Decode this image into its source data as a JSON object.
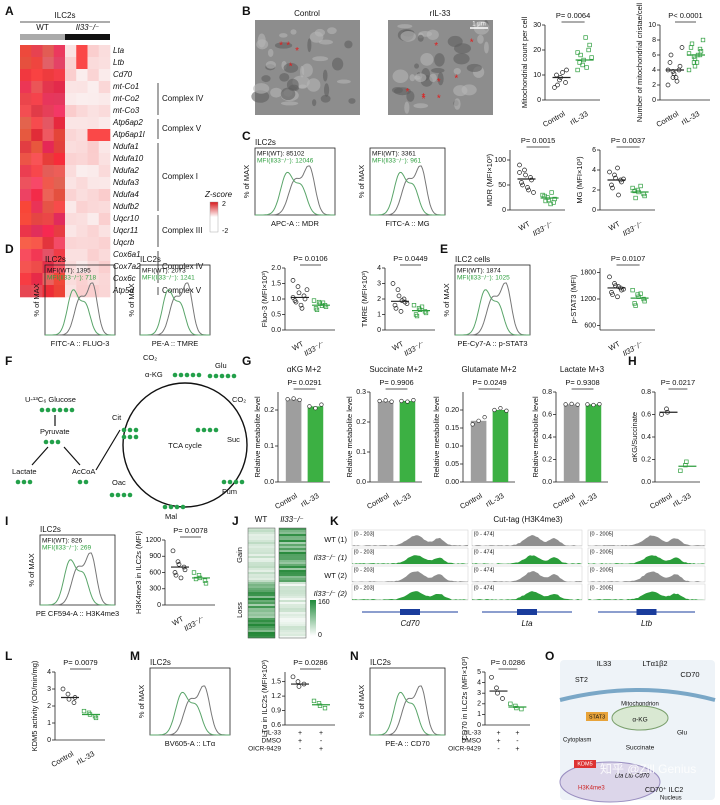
{
  "panel_labels": [
    "A",
    "B",
    "C",
    "D",
    "E",
    "F",
    "G",
    "H",
    "I",
    "J",
    "K",
    "L",
    "M",
    "N",
    "O"
  ],
  "heatmap_a": {
    "title": "ILC2s",
    "groups": [
      "WT",
      "Il33⁻/⁻"
    ],
    "genes": [
      "Lta",
      "Ltb",
      "Cd70",
      "mt-Co1",
      "mt-Co2",
      "mt-Co3",
      "Atp6ap2",
      "Atp6ap1l",
      "Ndufa1",
      "Ndufa10",
      "Ndufa2",
      "Ndufa3",
      "Ndufa4",
      "Ndufb2",
      "Uqcr10",
      "Uqcr11",
      "Uqcrb",
      "Cox6a1",
      "Cox7a2",
      "Cox6c",
      "Atp5d"
    ],
    "complexes": [
      "Complex IV",
      "Complex V",
      "Complex I",
      "Complex III",
      "Complex IV",
      "Complex V"
    ],
    "legend_title": "Z-score",
    "legend_max": 2,
    "legend_min": -2
  },
  "em_b": {
    "labels": [
      "Control",
      "rIL-33"
    ],
    "scale": "1 μm"
  },
  "flows": [
    {
      "title": "ILC2s",
      "mfi_wt": "MFI(WT): 85102",
      "mfi_ko": "MFI(Il33⁻/⁻): 12046",
      "ylabel": "% of MAX",
      "xlabel": "APC-A :: MDR"
    },
    {
      "mfi_wt": "MFI(WT): 3361",
      "mfi_ko": "MFI(Il33⁻/⁻): 961",
      "ylabel": "% of MAX",
      "xlabel": "FITC-A :: MG"
    },
    {
      "title": "ILC2s",
      "mfi_wt": "MFI(WT): 1395",
      "mfi_ko": "MFI(Il33⁻/⁻): 718",
      "ylabel": "% of MAX",
      "xlabel": "FITC-A :: FLUO-3"
    },
    {
      "title": "ILC2s",
      "mfi_wt": "MFI(WT): 2073",
      "mfi_ko": "MFI(Il33⁻/⁻): 1241",
      "ylabel": "% of MAX",
      "xlabel": "PE-A :: TMRE"
    },
    {
      "title": "ILC2 cells",
      "mfi_wt": "MFI(WT): 1874",
      "mfi_ko": "MFI(Il33⁻/⁻): 1025",
      "ylabel": "% of MAX",
      "xlabel": "PE-Cy7-A :: p-STAT3"
    },
    {
      "title": "ILC2s",
      "mfi_wt": "MFI(WT): 826",
      "mfi_ko": "MFI(Il33⁻/⁻): 269",
      "ylabel": "% of MAX",
      "xlabel": "PE CF594-A :: H3K4me3"
    },
    {
      "title": "ILC2s",
      "ylabel": "% of MAX",
      "xlabel": "BV605-A :: LTα"
    },
    {
      "title": "ILC2s",
      "ylabel": "% of MAX",
      "xlabel": "PE-A :: CD70"
    }
  ],
  "tca_f": {
    "glucose": "U-¹³C₆ Glucose",
    "pyruvate": "Pyruvate",
    "lactate": "Lactate",
    "accoa": "AcCoA",
    "cit": "Cit",
    "akg": "α-KG",
    "co2_1": "CO₂",
    "glu": "Glu",
    "co2_2": "CO₂",
    "suc": "Suc",
    "cycle": "TCA cycle",
    "fum": "Fum",
    "mal": "Mal",
    "oac": "Oac"
  },
  "heatmap_j": {
    "groups": [
      "WT",
      "Il33⁻/⁻"
    ],
    "gain": "Gain",
    "loss": "Loss",
    "legend_max": 160,
    "legend_min": 0
  },
  "tracks_k": {
    "title": "Cut-tag (H3K4me3)",
    "rows": [
      "WT (1)",
      "Il33⁻/⁻ (1)",
      "WT (2)",
      "Il33⁻/⁻ (2)"
    ],
    "ranges": [
      "[0 - 203]",
      "[0 - 474]",
      "[0 - 2005]"
    ],
    "genes": [
      "Cd70",
      "Lta",
      "Ltb"
    ]
  },
  "model_o": {
    "il33": "IL33",
    "lt": "LTα1β2",
    "cd70": "CD70",
    "st2": "ST2",
    "mito": "Mitochondrion",
    "akg": "α-KG",
    "glu": "Glu",
    "stat3": "STAT3",
    "cytoplasm": "Cytoplasm",
    "succinate": "Succinate",
    "kdm5": "KDM5",
    "genes": "Lta Ltb Cd70",
    "h3k4": "H3K4me3",
    "nucleus": "Nucleus",
    "cell": "CD70⁺ ILC2"
  },
  "watermark": "知乎 @Zill Genius",
  "chart_data": [
    {
      "type": "dot",
      "ylabel": "Mitochondrial count per cell",
      "p_label": "P= 0.0064",
      "categories": [
        "Control",
        "rIL-33"
      ],
      "colors": [
        "#222222",
        "#2e9e3e"
      ],
      "values": [
        [
          5,
          8,
          9,
          7,
          12,
          10,
          6,
          11
        ],
        [
          12,
          14,
          16,
          20,
          22,
          15,
          18,
          25,
          13,
          17,
          19
        ]
      ],
      "means": [
        9,
        16
      ],
      "ylim": [
        0,
        30
      ],
      "yticks": [
        0,
        10,
        20,
        30
      ]
    },
    {
      "type": "dot",
      "ylabel": "Number of mitochondrial cristae/cell",
      "p_label": "P< 0.0001",
      "categories": [
        "Control",
        "rIL-33"
      ],
      "colors": [
        "#222222",
        "#2e9e3e"
      ],
      "values": [
        [
          2,
          3,
          3.5,
          4,
          4.5,
          5,
          6,
          3,
          2.5,
          7,
          4,
          3.8
        ],
        [
          4,
          5,
          5.5,
          6,
          6.5,
          7,
          7.5,
          5,
          6,
          8,
          6.2,
          5.8,
          4.5,
          6.8
        ]
      ],
      "means": [
        4,
        6
      ],
      "ylim": [
        0,
        10
      ],
      "yticks": [
        0,
        2,
        4,
        6,
        8,
        10
      ]
    },
    {
      "type": "dot",
      "ylabel": "MDR (MFI×10³)",
      "p_label": "P= 0.0015",
      "categories": [
        "WT",
        "Il33⁻/⁻"
      ],
      "colors": [
        "#222222",
        "#2e9e3e"
      ],
      "values": [
        [
          90,
          80,
          70,
          65,
          60,
          55,
          50,
          45,
          40,
          35,
          75
        ],
        [
          30,
          25,
          20,
          15,
          22,
          28,
          18,
          12,
          35
        ]
      ],
      "means": [
        62,
        24
      ],
      "ylim": [
        0,
        120
      ],
      "yticks": [
        0,
        50,
        100
      ]
    },
    {
      "type": "dot",
      "ylabel": "MG (MFI×10³)",
      "p_label": "P= 0.0037",
      "categories": [
        "WT",
        "Il33⁻/⁻"
      ],
      "colors": [
        "#222222",
        "#2e9e3e"
      ],
      "values": [
        [
          3.8,
          3.5,
          3.2,
          3,
          2.8,
          2.5,
          2.2,
          4.2,
          1.5,
          3.1
        ],
        [
          2.2,
          2,
          1.8,
          1.6,
          1.4,
          1.9,
          1.2,
          2.4
        ]
      ],
      "means": [
        3,
        1.8
      ],
      "ylim": [
        0,
        6
      ],
      "yticks": [
        0,
        2,
        4,
        6
      ]
    },
    {
      "type": "dot",
      "ylabel": "Fluo-3 (MFI×10³)",
      "p_label": "P= 0.0106",
      "categories": [
        "WT",
        "Il33⁻/⁻"
      ],
      "colors": [
        "#222222",
        "#2e9e3e"
      ],
      "values": [
        [
          1.6,
          1.4,
          1.2,
          1.1,
          1,
          0.95,
          0.9,
          0.8,
          0.7,
          1.3,
          1.05
        ],
        [
          0.95,
          0.9,
          0.85,
          0.8,
          0.75,
          0.7,
          0.65,
          0.78,
          0.88
        ]
      ],
      "means": [
        1.05,
        0.8
      ],
      "ylim": [
        0,
        2
      ],
      "yticks": [
        {
          "value": 0,
          "label": "0.0"
        },
        0.5,
        {
          "value": 1,
          "label": "1.0"
        },
        1.5,
        {
          "value": 2,
          "label": "2.0"
        }
      ]
    },
    {
      "type": "dot",
      "ylabel": "TMRE (MFI×10³)",
      "p_label": "P= 0.0449",
      "categories": [
        "WT",
        "Il33⁻/⁻"
      ],
      "colors": [
        "#222222",
        "#2e9e3e"
      ],
      "values": [
        [
          3,
          2.6,
          2.2,
          2,
          1.8,
          1.6,
          1.4,
          1.2,
          1.9,
          1.7
        ],
        [
          1.6,
          1.4,
          1.3,
          1.2,
          1.1,
          1,
          0.9,
          1.5
        ]
      ],
      "means": [
        1.85,
        1.25
      ],
      "ylim": [
        0,
        4
      ],
      "yticks": [
        0,
        1,
        2,
        3,
        4
      ]
    },
    {
      "type": "dot",
      "ylabel": "p-STAT3 (MFI)",
      "p_label": "P= 0.0107",
      "categories": [
        "WT",
        "Il33⁻/⁻"
      ],
      "colors": [
        "#222222",
        "#2e9e3e"
      ],
      "values": [
        [
          1700,
          1550,
          1500,
          1450,
          1400,
          1350,
          1300,
          1250,
          1480,
          1420
        ],
        [
          1400,
          1300,
          1250,
          1200,
          1150,
          1100,
          1050,
          1320
        ]
      ],
      "means": [
        1450,
        1220
      ],
      "ylim": [
        500,
        1900
      ],
      "yticks": [
        600,
        1200,
        1800
      ]
    },
    {
      "type": "bar",
      "title": "αKG M+2",
      "ylabel": "Relative metabolite level",
      "p_label": "P= 0.0291",
      "categories": [
        "Control",
        "rIL-33"
      ],
      "colors": [
        "#9e9e9e",
        "#3cb043"
      ],
      "values": [
        0.23,
        0.21
      ],
      "points": [
        [
          0.23,
          0.232,
          0.228
        ],
        [
          0.21,
          0.205,
          0.215
        ]
      ],
      "ylim": [
        0,
        0.25
      ],
      "yticks": [
        {
          "value": 0,
          "label": "0.0"
        },
        0.1,
        0.2
      ]
    },
    {
      "type": "bar",
      "title": "Succinate M+2",
      "ylabel": "Relative metabolite level",
      "p_label": "P= 0.9906",
      "categories": [
        "Control",
        "rIL-33"
      ],
      "colors": [
        "#9e9e9e",
        "#3cb043"
      ],
      "values": [
        0.27,
        0.27
      ],
      "points": [
        [
          0.27,
          0.272,
          0.268
        ],
        [
          0.27,
          0.268,
          0.273
        ]
      ],
      "ylim": [
        0,
        0.3
      ],
      "yticks": [
        {
          "value": 0,
          "label": "0.0"
        },
        0.1,
        0.2,
        0.3
      ]
    },
    {
      "type": "bar",
      "title": "Glutamate M+2",
      "ylabel": "Relative metabolite level",
      "p_label": "P= 0.0249",
      "categories": [
        "Control",
        "rIL-33"
      ],
      "colors": [
        "#9e9e9e",
        "#3cb043"
      ],
      "values": [
        0.17,
        0.2
      ],
      "points": [
        [
          0.16,
          0.17,
          0.18
        ],
        [
          0.2,
          0.205,
          0.198
        ]
      ],
      "ylim": [
        0,
        0.25
      ],
      "yticks": [
        {
          "value": 0,
          "label": "0.00"
        },
        0.05,
        {
          "value": 0.1,
          "label": "0.10"
        },
        0.15,
        {
          "value": 0.2,
          "label": "0.20"
        }
      ]
    },
    {
      "type": "bar",
      "title": "Lactate M+3",
      "ylabel": "Relative metabolite level",
      "p_label": "P= 0.9308",
      "categories": [
        "Control",
        "rIL-33"
      ],
      "colors": [
        "#9e9e9e",
        "#3cb043"
      ],
      "values": [
        0.69,
        0.69
      ],
      "points": [
        [
          0.69,
          0.695,
          0.688
        ],
        [
          0.69,
          0.685,
          0.692
        ]
      ],
      "ylim": [
        0,
        0.8
      ],
      "yticks": [
        {
          "value": 0,
          "label": "0.0"
        },
        0.2,
        0.4,
        0.6,
        0.8
      ]
    },
    {
      "type": "dot",
      "ylabel": "αKG/Succinate",
      "p_label": "P= 0.0217",
      "categories": [
        "Control",
        "rIL-33"
      ],
      "colors": [
        "#222222",
        "#2e9e3e"
      ],
      "values": [
        [
          0.6,
          0.65,
          0.62
        ],
        [
          0.1,
          0.15,
          0.18
        ]
      ],
      "means": [
        0.62,
        0.14
      ],
      "ylim": [
        0,
        0.8
      ],
      "yticks": [
        {
          "value": 0,
          "label": "0.0"
        },
        0.2,
        0.4,
        0.6,
        0.8
      ]
    },
    {
      "type": "dot",
      "ylabel": "H3K4me3 in ILC2s (MFI)",
      "p_label": "P= 0.0078",
      "categories": [
        "WT",
        "Il33⁻/⁻"
      ],
      "colors": [
        "#222222",
        "#2e9e3e"
      ],
      "values": [
        [
          1000,
          800,
          750,
          700,
          650,
          600,
          550,
          500
        ],
        [
          600,
          550,
          500,
          450,
          400,
          480
        ]
      ],
      "means": [
        700,
        500
      ],
      "ylim": [
        0,
        1200
      ],
      "yticks": [
        0,
        300,
        600,
        900,
        1200
      ]
    },
    {
      "type": "dot",
      "ylabel": "KDM5 activity (OD/min/mg)",
      "p_label": "P= 0.0079",
      "categories": [
        "Control",
        "rIL-33"
      ],
      "colors": [
        "#222222",
        "#2e9e3e"
      ],
      "values": [
        [
          3,
          2.7,
          2.4,
          2.2,
          2.5
        ],
        [
          1.7,
          1.6,
          1.5,
          1.4,
          1.3
        ]
      ],
      "means": [
        2.5,
        1.5
      ],
      "ylim": [
        0,
        4
      ],
      "yticks": [
        0,
        1,
        2,
        3,
        4
      ]
    },
    {
      "type": "dot",
      "ylabel": "LTα in ILC2s (MFI×10³)",
      "p_label": "P= 0.0286",
      "colors": [
        "#222222",
        "#2e9e3e"
      ],
      "conditions": [
        {
          "label": "rIL-33",
          "marks": [
            "+",
            "+"
          ]
        },
        {
          "label": "DMSO",
          "marks": [
            "+",
            "-"
          ]
        },
        {
          "label": "OICR-9429",
          "marks": [
            "-",
            "+"
          ]
        }
      ],
      "values": [
        [
          1.6,
          1.5,
          1.4,
          1.45
        ],
        [
          1.1,
          1.05,
          1,
          0.95
        ]
      ],
      "means": [
        1.45,
        1.02
      ],
      "ylim": [
        0.6,
        1.7
      ],
      "yticks": [
        0.6,
        0.9,
        1.2,
        1.5
      ]
    },
    {
      "type": "dot",
      "ylabel": "CD70 in ILC2s (MFI×10³)",
      "p_label": "P= 0.0286",
      "colors": [
        "#222222",
        "#2e9e3e"
      ],
      "conditions": [
        {
          "label": "rIL-33",
          "marks": [
            "+",
            "+"
          ]
        },
        {
          "label": "DMSO",
          "marks": [
            "+",
            "-"
          ]
        },
        {
          "label": "OICR-9429",
          "marks": [
            "-",
            "+"
          ]
        }
      ],
      "values": [
        [
          4.5,
          3.5,
          3,
          2.5
        ],
        [
          2,
          1.8,
          1.6,
          1.5
        ]
      ],
      "means": [
        3.2,
        1.7
      ],
      "ylim": [
        0,
        5
      ],
      "yticks": [
        0,
        1,
        2,
        3,
        4,
        5
      ]
    }
  ]
}
